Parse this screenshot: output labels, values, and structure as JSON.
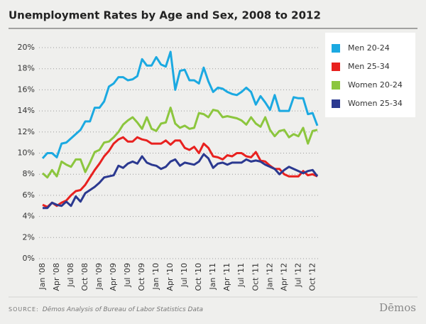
{
  "chart_data": {
    "type": "line",
    "title": "Unemployment Rates by Age and Sex, 2008 to 2012",
    "categories": [
      "Jan '08",
      null,
      null,
      "Apr '08",
      null,
      null,
      "Jul '08",
      null,
      null,
      "Oct '08",
      null,
      null,
      "Jan '09",
      null,
      null,
      "Apr '09",
      null,
      null,
      "Jul '09",
      null,
      null,
      "Oct '09",
      null,
      null,
      "Jan '10",
      null,
      null,
      "Apr '10",
      null,
      null,
      "Jul '10",
      null,
      null,
      "Oct '10",
      null,
      null,
      "Jan '11",
      null,
      null,
      "Apr '11",
      null,
      null,
      "Jul '11",
      null,
      null,
      "Oct '11",
      null,
      null,
      "Jan '12",
      null,
      null,
      "Apr '12",
      null,
      null,
      "Jul '12",
      null,
      null,
      "Oct '12",
      null
    ],
    "series": [
      {
        "name": "Men 20-24",
        "color": "#1ba9e1",
        "values": [
          9.5,
          10.0,
          10.0,
          9.6,
          10.9,
          11.0,
          11.4,
          11.8,
          12.2,
          13.0,
          13.0,
          14.3,
          14.3,
          14.9,
          16.3,
          16.6,
          17.2,
          17.2,
          16.9,
          17.0,
          17.3,
          18.9,
          18.3,
          18.3,
          19.1,
          18.4,
          18.2,
          19.6,
          16.0,
          17.8,
          17.9,
          16.9,
          16.9,
          16.6,
          18.1,
          16.8,
          15.8,
          16.2,
          16.1,
          15.8,
          15.6,
          15.5,
          15.8,
          16.2,
          15.8,
          14.6,
          15.4,
          14.8,
          14.1,
          15.5,
          14.0,
          14.0,
          14.0,
          15.3,
          15.2,
          15.2,
          13.7,
          13.8,
          12.6
        ]
      },
      {
        "name": "Men 25-34",
        "color": "#e8211f",
        "values": [
          5.1,
          4.9,
          5.3,
          5.0,
          5.3,
          5.5,
          6.0,
          6.4,
          6.5,
          7.0,
          7.7,
          8.4,
          9.0,
          9.7,
          10.2,
          10.9,
          11.3,
          11.5,
          11.1,
          11.1,
          11.5,
          11.3,
          11.2,
          10.9,
          10.9,
          10.9,
          11.2,
          10.8,
          11.2,
          11.2,
          10.5,
          10.3,
          10.6,
          10.0,
          10.9,
          10.5,
          9.7,
          9.6,
          9.4,
          9.8,
          9.7,
          10.0,
          10.0,
          9.7,
          9.6,
          10.1,
          9.3,
          9.2,
          8.8,
          8.5,
          8.5,
          8.0,
          7.8,
          7.8,
          7.8,
          8.3,
          7.9,
          8.0,
          7.8
        ]
      },
      {
        "name": "Women 20-24",
        "color": "#8cc63e",
        "values": [
          8.1,
          7.7,
          8.4,
          7.8,
          9.2,
          8.9,
          8.7,
          9.4,
          9.4,
          8.2,
          9.1,
          10.1,
          10.3,
          11.0,
          11.1,
          11.5,
          12.0,
          12.7,
          13.1,
          13.4,
          12.9,
          12.3,
          13.4,
          12.3,
          12.1,
          12.8,
          12.9,
          14.3,
          12.8,
          12.4,
          12.6,
          12.3,
          12.4,
          13.8,
          13.7,
          13.4,
          14.1,
          14.0,
          13.4,
          13.5,
          13.4,
          13.3,
          13.1,
          12.7,
          13.4,
          12.8,
          12.5,
          13.4,
          12.2,
          11.6,
          12.1,
          12.2,
          11.5,
          11.8,
          11.6,
          12.4,
          10.9,
          12.1,
          12.2
        ]
      },
      {
        "name": "Women 25-34",
        "color": "#2b3990",
        "values": [
          4.8,
          4.8,
          5.3,
          5.1,
          5.0,
          5.4,
          5.0,
          5.9,
          5.4,
          6.2,
          6.5,
          6.8,
          7.2,
          7.7,
          7.8,
          7.9,
          8.8,
          8.6,
          9.0,
          9.2,
          9.0,
          9.7,
          9.1,
          8.9,
          8.8,
          8.5,
          8.7,
          9.2,
          9.4,
          8.8,
          9.1,
          9.0,
          8.9,
          9.2,
          9.9,
          9.5,
          8.6,
          9.0,
          9.1,
          8.9,
          9.1,
          9.1,
          9.1,
          9.4,
          9.2,
          9.3,
          9.2,
          8.9,
          8.7,
          8.5,
          8.0,
          8.4,
          8.7,
          8.5,
          8.3,
          8.1,
          8.3,
          8.4,
          7.8
        ]
      }
    ],
    "ylim": [
      0,
      20
    ],
    "yticks": [
      {
        "value": 0,
        "label": "0%"
      },
      {
        "value": 2,
        "label": "2%"
      },
      {
        "value": 4,
        "label": "4%"
      },
      {
        "value": 6,
        "label": "6%"
      },
      {
        "value": 8,
        "label": "8%"
      },
      {
        "value": 10,
        "label": "10%"
      },
      {
        "value": 12,
        "label": "12%"
      },
      {
        "value": 14,
        "label": "14%"
      },
      {
        "value": 16,
        "label": "16%"
      },
      {
        "value": 18,
        "label": "18%"
      },
      {
        "value": 20,
        "label": "20%"
      }
    ],
    "grid": true,
    "legend": "right"
  },
  "footer": {
    "source_label": "SOURCE:",
    "source_text": "Dēmos Analysis of Bureau of Labor Statistics Data",
    "logo": "Dēmos"
  }
}
